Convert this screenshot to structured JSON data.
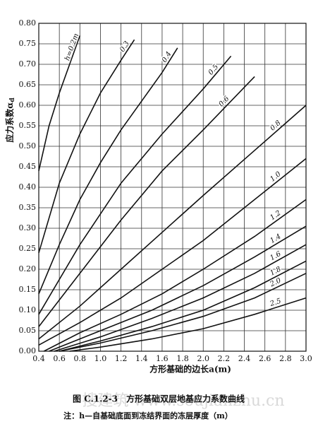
{
  "chart_data": {
    "type": "line",
    "ylabel": "应力系数α",
    "ylabel_sub": "d",
    "xlabel": "方形基础的边长a(m)",
    "caption": "图 C.1.2-3　方形基础双层地基应力系数曲线",
    "note": "注：h—自基础底面到冻结界面的冻层厚度（m）",
    "watermark": "搜建筑 www.soujianzhu.cn",
    "xlim": [
      0.4,
      3.0
    ],
    "ylim": [
      0,
      0.8
    ],
    "xticks": [
      0.4,
      0.6,
      0.8,
      {
        "value": 1,
        "label": "1.0"
      },
      1.2,
      1.4,
      1.6,
      1.8,
      {
        "value": 2,
        "label": "2.0"
      },
      2.2,
      2.4,
      2.6,
      2.8,
      {
        "value": 3,
        "label": "3.0"
      }
    ],
    "yticks": [
      {
        "value": 0,
        "label": "0.00"
      },
      {
        "value": 0.05,
        "label": "0.05"
      },
      {
        "value": 0.1,
        "label": "0.10"
      },
      {
        "value": 0.15,
        "label": "0.15"
      },
      {
        "value": 0.2,
        "label": "0.20"
      },
      {
        "value": 0.25,
        "label": "0.25"
      },
      {
        "value": 0.3,
        "label": "0.30"
      },
      {
        "value": 0.35,
        "label": "0.35"
      },
      {
        "value": 0.4,
        "label": "0.40"
      },
      {
        "value": 0.45,
        "label": "0.45"
      },
      {
        "value": 0.5,
        "label": "0.50"
      },
      {
        "value": 0.55,
        "label": "0.55"
      },
      {
        "value": 0.6,
        "label": "0.60"
      },
      {
        "value": 0.65,
        "label": "0.65"
      },
      {
        "value": 0.7,
        "label": "0.70"
      },
      {
        "value": 0.75,
        "label": "0.75"
      },
      {
        "value": 0.8,
        "label": "0.80"
      }
    ],
    "grid": true,
    "color": "#111111",
    "series": [
      {
        "name": "h=0.2m",
        "x": [
          0.4,
          0.5,
          0.6,
          0.7,
          0.8
        ],
        "values": [
          0.44,
          0.55,
          0.63,
          0.7,
          0.77
        ]
      },
      {
        "name": "0.3",
        "x": [
          0.4,
          0.6,
          0.8,
          1.0,
          1.2,
          1.33
        ],
        "values": [
          0.24,
          0.41,
          0.53,
          0.63,
          0.71,
          0.76
        ]
      },
      {
        "name": "0.4",
        "x": [
          0.4,
          0.6,
          0.8,
          1.0,
          1.2,
          1.4,
          1.6,
          1.75
        ],
        "values": [
          0.14,
          0.26,
          0.37,
          0.46,
          0.54,
          0.61,
          0.68,
          0.74
        ]
      },
      {
        "name": "0.5",
        "x": [
          0.4,
          0.8,
          1.2,
          1.6,
          2.0,
          2.27
        ],
        "values": [
          0.09,
          0.26,
          0.41,
          0.53,
          0.64,
          0.72
        ]
      },
      {
        "name": "0.6",
        "x": [
          0.4,
          0.8,
          1.2,
          1.6,
          2.0,
          2.5
        ],
        "values": [
          0.06,
          0.19,
          0.32,
          0.44,
          0.54,
          0.67
        ]
      },
      {
        "name": "0.8",
        "x": [
          0.4,
          0.8,
          1.2,
          1.6,
          2.0,
          2.5,
          3.0
        ],
        "values": [
          0.03,
          0.11,
          0.2,
          0.29,
          0.38,
          0.49,
          0.6
        ]
      },
      {
        "name": "1.0",
        "x": [
          0.4,
          0.8,
          1.2,
          1.6,
          2.0,
          2.5,
          3.0
        ],
        "values": [
          0.015,
          0.07,
          0.13,
          0.2,
          0.27,
          0.37,
          0.47
        ]
      },
      {
        "name": "1.2",
        "x": [
          0.45,
          0.8,
          1.2,
          1.6,
          2.0,
          2.5,
          3.0
        ],
        "values": [
          0,
          0.045,
          0.09,
          0.14,
          0.2,
          0.28,
          0.37
        ]
      },
      {
        "name": "1.4",
        "x": [
          0.5,
          1.0,
          1.5,
          2.0,
          2.5,
          3.0
        ],
        "values": [
          0,
          0.05,
          0.1,
          0.16,
          0.23,
          0.305
        ]
      },
      {
        "name": "1.6",
        "x": [
          0.55,
          1.0,
          1.5,
          2.0,
          2.5,
          3.0
        ],
        "values": [
          0,
          0.035,
          0.08,
          0.13,
          0.19,
          0.26
        ]
      },
      {
        "name": "1.8",
        "x": [
          0.6,
          1.0,
          1.5,
          2.0,
          2.5,
          3.0
        ],
        "values": [
          0,
          0.025,
          0.06,
          0.1,
          0.155,
          0.22
        ]
      },
      {
        "name": "2.0",
        "x": [
          0.6,
          1.0,
          1.5,
          2.0,
          2.5,
          3.0
        ],
        "values": [
          0,
          0.02,
          0.05,
          0.085,
          0.13,
          0.19
        ]
      },
      {
        "name": "2.5",
        "x": [
          0.7,
          1.0,
          1.5,
          2.0,
          2.5,
          3.0
        ],
        "values": [
          0,
          0.01,
          0.03,
          0.055,
          0.09,
          0.13
        ]
      }
    ]
  }
}
